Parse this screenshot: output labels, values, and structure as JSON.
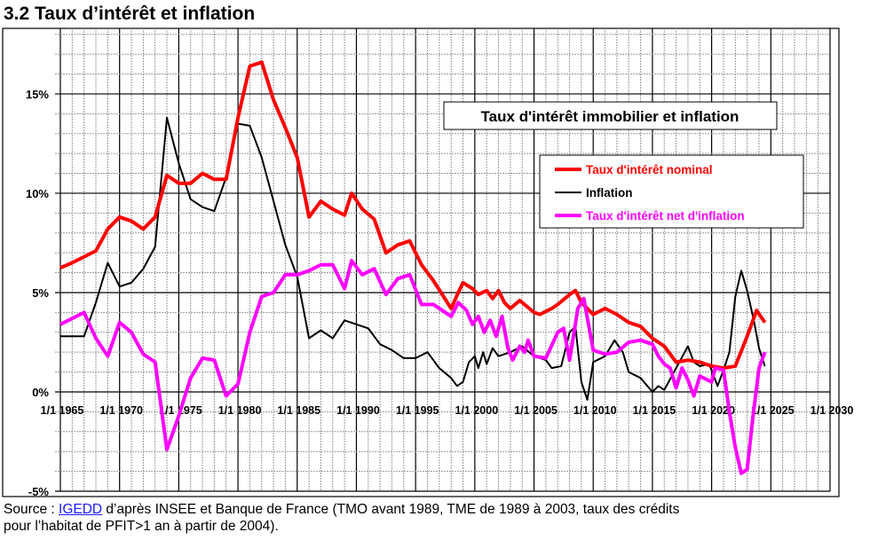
{
  "heading": "3.2 Taux d’intérêt et inflation",
  "chart_data": {
    "type": "line",
    "title": "Taux d'intérêt immobilier  et inflation",
    "xlabel": "",
    "ylabel": "",
    "xlim": [
      1965,
      2030
    ],
    "ylim": [
      -5,
      18.3
    ],
    "x_ticks": [
      "1/1 1965",
      "1/1 1970",
      "1/1 1975",
      "1/1 1980",
      "1/1 1985",
      "1/1 1990",
      "1/1 1995",
      "1/1 2000",
      "1/1 2005",
      "1/1 2010",
      "1/1 2015",
      "1/1 2020",
      "1/1 2025",
      "1/1 2030"
    ],
    "y_ticks": [
      {
        "v": -5,
        "label": "-5%"
      },
      {
        "v": 0,
        "label": "0%"
      },
      {
        "v": 5,
        "label": "5%"
      },
      {
        "v": 10,
        "label": "10%"
      },
      {
        "v": 15,
        "label": "15%"
      }
    ],
    "grid": true,
    "legend_position": "top-right",
    "series": [
      {
        "name": "Taux d'intérêt nominal",
        "color": "#ff0000",
        "points": [
          [
            1965,
            6.25
          ],
          [
            1966,
            6.5
          ],
          [
            1967,
            6.8
          ],
          [
            1968,
            7.1
          ],
          [
            1969,
            8.2
          ],
          [
            1970,
            8.8
          ],
          [
            1971,
            8.6
          ],
          [
            1972,
            8.2
          ],
          [
            1973,
            8.8
          ],
          [
            1974,
            10.9
          ],
          [
            1975,
            10.5
          ],
          [
            1976,
            10.5
          ],
          [
            1977,
            11.0
          ],
          [
            1978,
            10.7
          ],
          [
            1979,
            10.7
          ],
          [
            1980,
            13.8
          ],
          [
            1981,
            16.4
          ],
          [
            1982,
            16.6
          ],
          [
            1983,
            14.7
          ],
          [
            1984,
            13.3
          ],
          [
            1985,
            11.8
          ],
          [
            1986,
            8.8
          ],
          [
            1987,
            9.6
          ],
          [
            1988,
            9.2
          ],
          [
            1989,
            8.9
          ],
          [
            1989.6,
            10.0
          ],
          [
            1990.5,
            9.2
          ],
          [
            1991.5,
            8.7
          ],
          [
            1992.5,
            7.0
          ],
          [
            1993.5,
            7.4
          ],
          [
            1994.5,
            7.6
          ],
          [
            1995.5,
            6.4
          ],
          [
            1996.5,
            5.6
          ],
          [
            1998,
            4.2
          ],
          [
            1998.6,
            5.0
          ],
          [
            1999,
            5.5
          ],
          [
            1999.8,
            5.2
          ],
          [
            2000.3,
            4.9
          ],
          [
            2001,
            5.1
          ],
          [
            2001.5,
            4.7
          ],
          [
            2002,
            5.1
          ],
          [
            2002.5,
            4.5
          ],
          [
            2003,
            4.2
          ],
          [
            2003.8,
            4.6
          ],
          [
            2005,
            4.0
          ],
          [
            2005.5,
            3.9
          ],
          [
            2006.5,
            4.2
          ],
          [
            2007,
            4.4
          ],
          [
            2008,
            4.9
          ],
          [
            2008.5,
            5.1
          ],
          [
            2009,
            4.5
          ],
          [
            2010,
            3.9
          ],
          [
            2011,
            4.2
          ],
          [
            2012,
            3.9
          ],
          [
            2013,
            3.5
          ],
          [
            2014,
            3.3
          ],
          [
            2015,
            2.7
          ],
          [
            2016,
            2.3
          ],
          [
            2017,
            1.5
          ],
          [
            2018,
            1.6
          ],
          [
            2019,
            1.5
          ],
          [
            2020,
            1.3
          ],
          [
            2021,
            1.2
          ],
          [
            2022,
            1.3
          ],
          [
            2023,
            2.8
          ],
          [
            2023.8,
            4.1
          ],
          [
            2024.5,
            3.5
          ]
        ]
      },
      {
        "name": "Inflation",
        "color": "#000000",
        "points": [
          [
            1965,
            2.8
          ],
          [
            1967,
            2.8
          ],
          [
            1968,
            4.5
          ],
          [
            1969,
            6.5
          ],
          [
            1970,
            5.3
          ],
          [
            1971,
            5.5
          ],
          [
            1972,
            6.2
          ],
          [
            1973,
            7.3
          ],
          [
            1974,
            13.8
          ],
          [
            1975,
            11.5
          ],
          [
            1976,
            9.7
          ],
          [
            1977,
            9.3
          ],
          [
            1978,
            9.1
          ],
          [
            1979,
            10.8
          ],
          [
            1980,
            13.5
          ],
          [
            1981,
            13.4
          ],
          [
            1982,
            11.8
          ],
          [
            1983,
            9.6
          ],
          [
            1984,
            7.4
          ],
          [
            1985,
            5.8
          ],
          [
            1986,
            2.7
          ],
          [
            1987,
            3.1
          ],
          [
            1988,
            2.7
          ],
          [
            1989,
            3.6
          ],
          [
            1990,
            3.4
          ],
          [
            1991,
            3.2
          ],
          [
            1992,
            2.4
          ],
          [
            1993,
            2.1
          ],
          [
            1994,
            1.7
          ],
          [
            1995,
            1.7
          ],
          [
            1996,
            2.0
          ],
          [
            1997,
            1.2
          ],
          [
            1998,
            0.7
          ],
          [
            1998.5,
            0.3
          ],
          [
            1999,
            0.5
          ],
          [
            1999.5,
            1.5
          ],
          [
            2000,
            1.8
          ],
          [
            2000.3,
            1.2
          ],
          [
            2000.7,
            2.0
          ],
          [
            2001,
            1.4
          ],
          [
            2001.5,
            2.2
          ],
          [
            2002,
            1.8
          ],
          [
            2003,
            2.0
          ],
          [
            2004,
            2.3
          ],
          [
            2005,
            1.8
          ],
          [
            2006,
            1.6
          ],
          [
            2006.5,
            1.2
          ],
          [
            2007.3,
            1.3
          ],
          [
            2008,
            3.0
          ],
          [
            2008.5,
            3.3
          ],
          [
            2009,
            0.5
          ],
          [
            2009.5,
            -0.4
          ],
          [
            2010,
            1.5
          ],
          [
            2011,
            1.8
          ],
          [
            2011.8,
            2.6
          ],
          [
            2012.5,
            2.0
          ],
          [
            2013,
            1.0
          ],
          [
            2014,
            0.7
          ],
          [
            2015,
            0.0
          ],
          [
            2015.5,
            0.3
          ],
          [
            2016,
            0.1
          ],
          [
            2017,
            1.2
          ],
          [
            2018,
            2.3
          ],
          [
            2018.5,
            1.5
          ],
          [
            2019,
            1.3
          ],
          [
            2019.8,
            1.4
          ],
          [
            2020.5,
            0.3
          ],
          [
            2021,
            1.1
          ],
          [
            2021.5,
            2.0
          ],
          [
            2022,
            4.8
          ],
          [
            2022.5,
            6.1
          ],
          [
            2023,
            5.1
          ],
          [
            2023.6,
            3.5
          ],
          [
            2024,
            2.2
          ],
          [
            2024.5,
            1.3
          ]
        ]
      },
      {
        "name": "Taux d'intérêt net d'inflation",
        "color": "#ff00ff",
        "points": [
          [
            1965,
            3.4
          ],
          [
            1967,
            4.0
          ],
          [
            1968,
            2.7
          ],
          [
            1969,
            1.8
          ],
          [
            1970,
            3.5
          ],
          [
            1971,
            3.0
          ],
          [
            1972,
            1.9
          ],
          [
            1973,
            1.5
          ],
          [
            1974,
            -2.9
          ],
          [
            1975,
            -1.2
          ],
          [
            1976,
            0.7
          ],
          [
            1977,
            1.7
          ],
          [
            1978,
            1.6
          ],
          [
            1979,
            -0.2
          ],
          [
            1980,
            0.4
          ],
          [
            1981,
            3.0
          ],
          [
            1982,
            4.8
          ],
          [
            1983,
            5.0
          ],
          [
            1984,
            5.9
          ],
          [
            1985,
            5.9
          ],
          [
            1986,
            6.1
          ],
          [
            1987,
            6.4
          ],
          [
            1988,
            6.4
          ],
          [
            1989,
            5.2
          ],
          [
            1989.6,
            6.6
          ],
          [
            1990.5,
            5.9
          ],
          [
            1991.5,
            6.2
          ],
          [
            1992.5,
            4.9
          ],
          [
            1993.5,
            5.7
          ],
          [
            1994.5,
            5.9
          ],
          [
            1995.5,
            4.4
          ],
          [
            1996.5,
            4.4
          ],
          [
            1998,
            3.8
          ],
          [
            1998.6,
            4.5
          ],
          [
            1999.3,
            4.1
          ],
          [
            1999.8,
            3.4
          ],
          [
            2000.3,
            3.8
          ],
          [
            2000.8,
            3.0
          ],
          [
            2001.3,
            3.6
          ],
          [
            2001.8,
            2.8
          ],
          [
            2002.3,
            3.8
          ],
          [
            2002.8,
            2.2
          ],
          [
            2003.2,
            1.6
          ],
          [
            2003.8,
            2.3
          ],
          [
            2004.2,
            2.0
          ],
          [
            2004.5,
            2.6
          ],
          [
            2005,
            1.8
          ],
          [
            2006,
            1.7
          ],
          [
            2007,
            3.0
          ],
          [
            2007.5,
            3.2
          ],
          [
            2008,
            1.6
          ],
          [
            2008.7,
            4.2
          ],
          [
            2009.2,
            4.7
          ],
          [
            2010,
            2.1
          ],
          [
            2011,
            1.9
          ],
          [
            2012,
            2.0
          ],
          [
            2013,
            2.5
          ],
          [
            2014,
            2.6
          ],
          [
            2015,
            2.4
          ],
          [
            2015.5,
            1.8
          ],
          [
            2016,
            1.4
          ],
          [
            2016.5,
            1.2
          ],
          [
            2017,
            0.2
          ],
          [
            2017.5,
            1.2
          ],
          [
            2018,
            0.6
          ],
          [
            2018.5,
            -0.2
          ],
          [
            2019,
            0.8
          ],
          [
            2020,
            0.5
          ],
          [
            2020.3,
            1.2
          ],
          [
            2021,
            1.1
          ],
          [
            2021.5,
            -1.0
          ],
          [
            2022,
            -2.8
          ],
          [
            2022.5,
            -4.1
          ],
          [
            2023,
            -3.9
          ],
          [
            2023.5,
            -1.2
          ],
          [
            2024,
            1.2
          ],
          [
            2024.5,
            2.0
          ]
        ]
      }
    ]
  },
  "footer": {
    "prefix": "Source : ",
    "link": "IGEDD",
    "rest": " d’après INSEE et  Banque de France (TMO avant 1989, TME de 1989 à 2003, taux des crédits",
    "line2": " pour l’habitat de PFIT>1 an à partir de 2004)."
  }
}
